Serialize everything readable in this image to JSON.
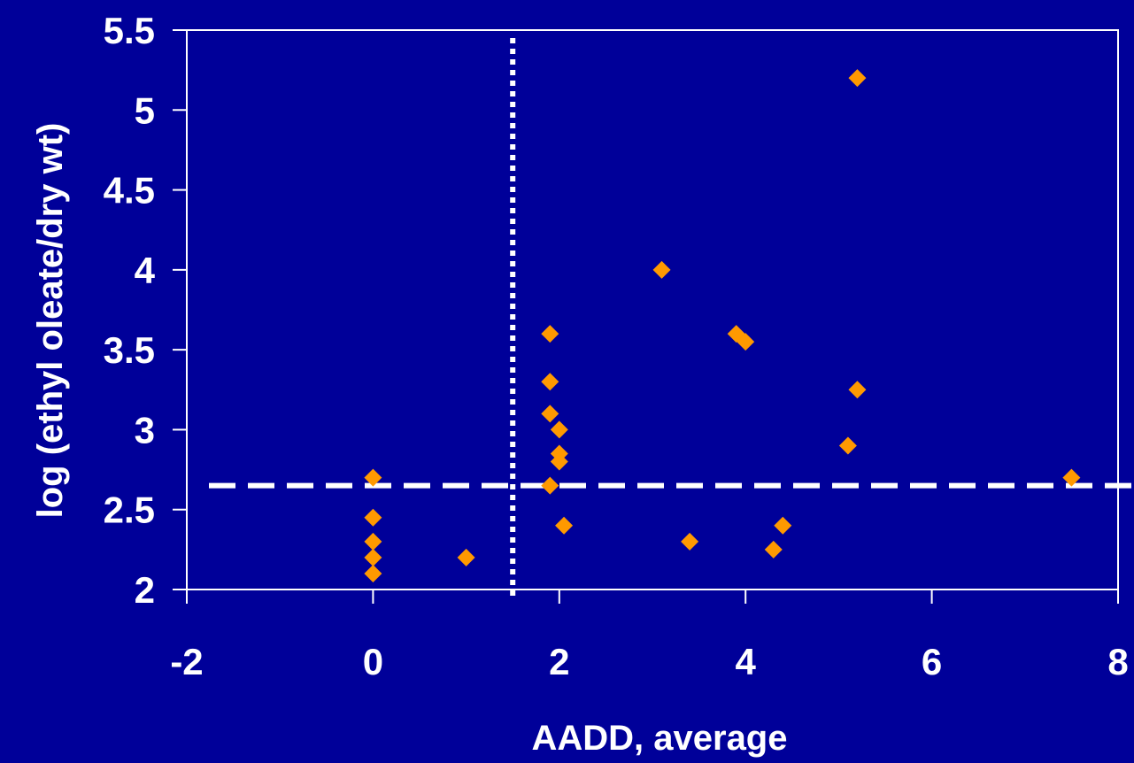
{
  "chart_data": {
    "type": "scatter",
    "title": "",
    "xlabel": "AADD, average",
    "ylabel": "log (ethyl oleate/dry wt)",
    "xlim": [
      -2,
      8
    ],
    "ylim": [
      2,
      5.5
    ],
    "x_ticks": [
      -2,
      0,
      2,
      4,
      6,
      8
    ],
    "y_ticks": [
      2,
      2.5,
      3,
      3.5,
      4,
      4.5,
      5,
      5.5
    ],
    "x_tick_labels": [
      "-2",
      "0",
      "2",
      "4",
      "6",
      "8"
    ],
    "y_tick_labels": [
      "2",
      "2.5",
      "3",
      "3.5",
      "4",
      "4.5",
      "5",
      "5.5"
    ],
    "grid": false,
    "legend": "none",
    "marker": "diamond",
    "colors": {
      "background": "#000099",
      "marker": "#ff9900",
      "axis": "#ffffff",
      "reference_lines": "#ffffff"
    },
    "reference_lines": [
      {
        "orientation": "vertical",
        "value": 1.5,
        "style": "dotted"
      },
      {
        "orientation": "horizontal",
        "value": 2.65,
        "style": "dashed"
      }
    ],
    "points": [
      {
        "x": 0,
        "y": 2.7
      },
      {
        "x": 0,
        "y": 2.45
      },
      {
        "x": 0,
        "y": 2.3
      },
      {
        "x": 0,
        "y": 2.2
      },
      {
        "x": 0,
        "y": 2.1
      },
      {
        "x": 1.0,
        "y": 2.2
      },
      {
        "x": 1.9,
        "y": 3.6
      },
      {
        "x": 1.9,
        "y": 3.3
      },
      {
        "x": 1.9,
        "y": 3.1
      },
      {
        "x": 1.9,
        "y": 2.65
      },
      {
        "x": 2.0,
        "y": 3.0
      },
      {
        "x": 2.0,
        "y": 2.85
      },
      {
        "x": 2.0,
        "y": 2.8
      },
      {
        "x": 2.05,
        "y": 2.4
      },
      {
        "x": 3.1,
        "y": 4.0
      },
      {
        "x": 3.4,
        "y": 2.3
      },
      {
        "x": 3.9,
        "y": 3.6
      },
      {
        "x": 4.0,
        "y": 3.55
      },
      {
        "x": 4.3,
        "y": 2.25
      },
      {
        "x": 4.4,
        "y": 2.4
      },
      {
        "x": 5.1,
        "y": 2.9
      },
      {
        "x": 5.2,
        "y": 5.2
      },
      {
        "x": 5.2,
        "y": 3.25
      },
      {
        "x": 7.5,
        "y": 2.7
      }
    ]
  }
}
